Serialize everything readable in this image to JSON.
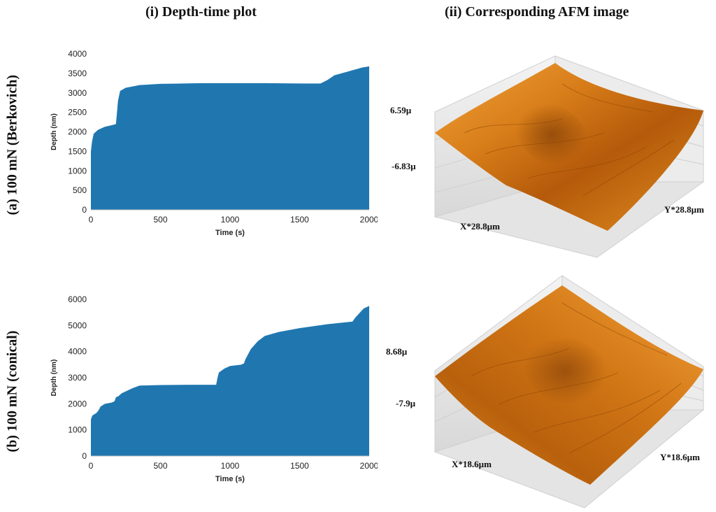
{
  "titles": {
    "left": "(i) Depth-time plot",
    "right": "(ii) Corresponding AFM image"
  },
  "rows": {
    "a": "(a)   100 mN (Berkovich)",
    "b": "(b) 100 mN (conical)"
  },
  "colors": {
    "area_fill": "#2077b0",
    "afm_dark": "#7a3a05",
    "afm_mid": "#c86a10",
    "afm_light": "#f3a43a",
    "box_wall": "#e7e7e7"
  },
  "afm": {
    "a": {
      "zmax": "6.59µ",
      "zmin": "-6.83µ",
      "x": "X*28.8µm",
      "y": "Y*28.8µm"
    },
    "b": {
      "zmax": "8.68µ",
      "zmin": "-7.9µ",
      "x": "X*18.6µm",
      "y": "Y*18.6µm"
    }
  },
  "chart_data": [
    {
      "type": "area",
      "xlabel": "Time (s)",
      "ylabel": "Depth (nm)",
      "xlim": [
        0,
        2000
      ],
      "ylim": [
        0,
        4000
      ],
      "xticks": [
        0,
        500,
        1000,
        1500,
        2000
      ],
      "yticks": [
        0,
        500,
        1000,
        1500,
        2000,
        2500,
        3000,
        3500,
        4000
      ],
      "x": [
        0,
        8,
        20,
        50,
        100,
        150,
        180,
        195,
        210,
        250,
        350,
        500,
        800,
        1000,
        1200,
        1500,
        1650,
        1700,
        1750,
        1850,
        1950,
        2000
      ],
      "y": [
        1500,
        1750,
        1950,
        2050,
        2130,
        2170,
        2200,
        2800,
        3050,
        3130,
        3200,
        3230,
        3250,
        3250,
        3250,
        3240,
        3240,
        3330,
        3450,
        3550,
        3650,
        3680
      ]
    },
    {
      "type": "area",
      "xlabel": "Time (s)",
      "ylabel": "Depth (nm)",
      "xlim": [
        0,
        2000
      ],
      "ylim": [
        0,
        6000
      ],
      "xticks": [
        0,
        500,
        1000,
        1500,
        2000
      ],
      "yticks": [
        0,
        1000,
        2000,
        3000,
        4000,
        5000,
        6000
      ],
      "x": [
        0,
        10,
        40,
        55,
        70,
        100,
        150,
        170,
        180,
        200,
        220,
        260,
        300,
        350,
        500,
        700,
        900,
        910,
        920,
        960,
        1000,
        1080,
        1100,
        1110,
        1150,
        1200,
        1250,
        1350,
        1500,
        1700,
        1880,
        1900,
        1960,
        2000
      ],
      "y": [
        1400,
        1550,
        1650,
        1750,
        1900,
        2000,
        2050,
        2100,
        2250,
        2300,
        2400,
        2500,
        2600,
        2700,
        2720,
        2730,
        2730,
        3000,
        3200,
        3350,
        3450,
        3500,
        3550,
        3700,
        4100,
        4400,
        4600,
        4750,
        4900,
        5050,
        5150,
        5300,
        5650,
        5750
      ]
    }
  ]
}
